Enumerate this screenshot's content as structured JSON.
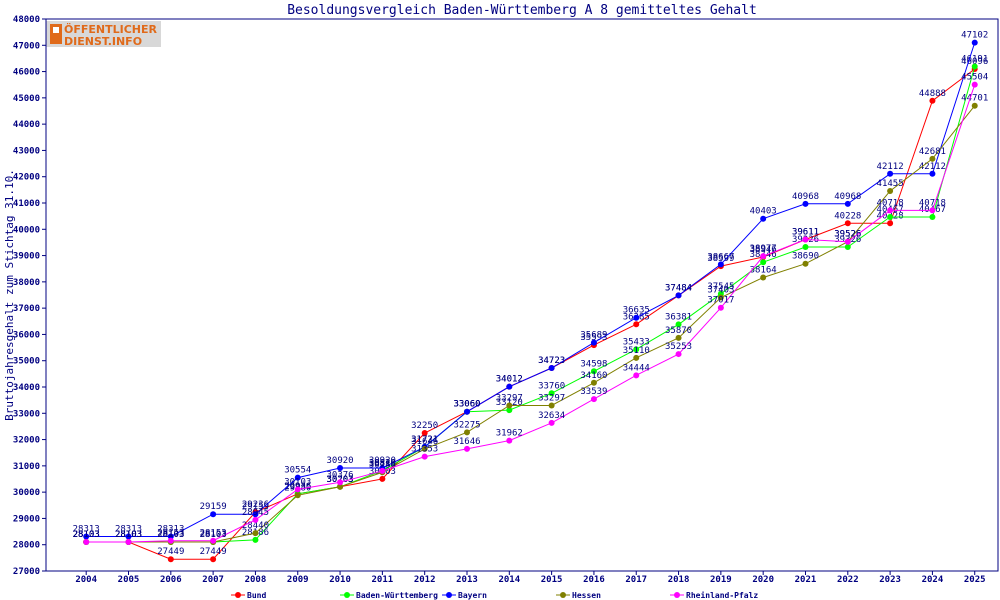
{
  "chart_data": {
    "type": "line",
    "title": "Besoldungsvergleich Baden-Württemberg A 8 gemitteltes Gehalt",
    "xlabel": "",
    "ylabel": "Bruttojahresgehalt zum Stichtag 31.10.",
    "ylim": [
      27000,
      48000
    ],
    "yticks": [
      27000,
      28000,
      29000,
      30000,
      31000,
      32000,
      33000,
      34000,
      35000,
      36000,
      37000,
      38000,
      39000,
      40000,
      41000,
      42000,
      43000,
      44000,
      45000,
      46000,
      47000,
      48000
    ],
    "categories": [
      "2004",
      "2005",
      "2006",
      "2007",
      "2008",
      "2009",
      "2010",
      "2011",
      "2012",
      "2013",
      "2014",
      "2015",
      "2016",
      "2017",
      "2018",
      "2019",
      "2020",
      "2021",
      "2022",
      "2023",
      "2024",
      "2025"
    ],
    "grid": false,
    "legend_position": "bottom",
    "series": [
      {
        "name": "Bund",
        "color": "#ff0000",
        "values": [
          28103,
          28103,
          27449,
          27449,
          29236,
          29936,
          30203,
          30503,
          32250,
          33060,
          34012,
          34723,
          35593,
          36385,
          37484,
          38599,
          38946,
          39611,
          40228,
          40228,
          44888,
          46096
        ]
      },
      {
        "name": "Baden-Württemberg",
        "color": "#00ff00",
        "values": [
          28103,
          28103,
          28103,
          28103,
          28186,
          29936,
          30203,
          30820,
          31721,
          33060,
          33120,
          33760,
          34598,
          35433,
          36381,
          37545,
          38746,
          39326,
          39326,
          40467,
          40467,
          46191
        ]
      },
      {
        "name": "Bayern",
        "color": "#0000ff",
        "values": [
          28313,
          28313,
          28313,
          29159,
          29159,
          30554,
          30920,
          30920,
          31721,
          33060,
          34012,
          34723,
          35689,
          36635,
          37484,
          38667,
          40403,
          40968,
          40968,
          42112,
          42112,
          47102
        ]
      },
      {
        "name": "Hessen",
        "color": "#808000",
        "values": [
          28103,
          28103,
          28103,
          28103,
          28440,
          29880,
          30203,
          30756,
          31646,
          32275,
          33297,
          33297,
          34160,
          35110,
          35870,
          37403,
          38164,
          38690,
          39526,
          41455,
          42681,
          44701
        ]
      },
      {
        "name": "Rheinland-Pfalz",
        "color": "#ff00ff",
        "values": [
          28103,
          28103,
          28153,
          28153,
          28945,
          30103,
          30376,
          30810,
          31353,
          31646,
          31962,
          32634,
          33539,
          34444,
          35253,
          37017,
          38977,
          39611,
          39526,
          40718,
          40718,
          45504
        ]
      }
    ]
  },
  "logo": {
    "line1": "ÖFFENTLICHER",
    "line2": "DIENST.INFO"
  },
  "icons": {
    "legend_marker": "filled-circle-on-line"
  }
}
